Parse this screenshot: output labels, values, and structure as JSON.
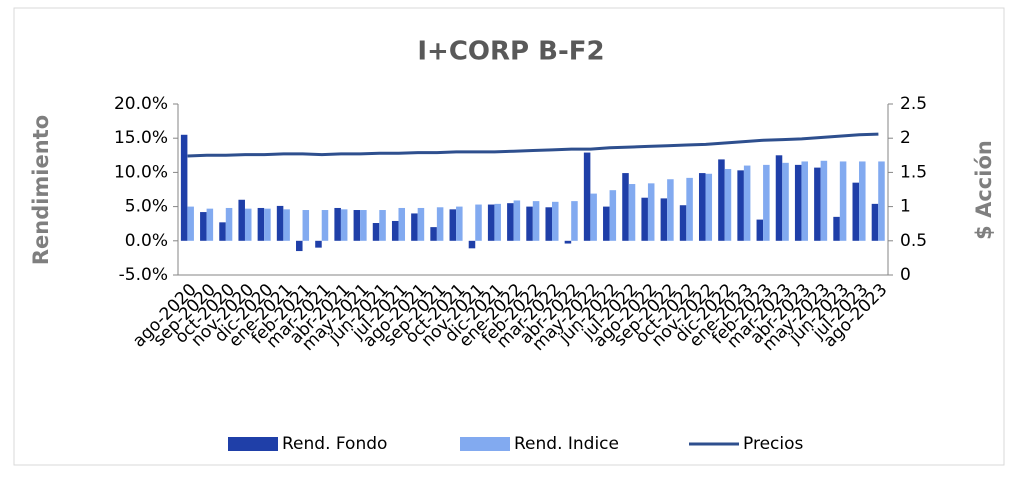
{
  "chart_data": {
    "type": "bar-line",
    "title": "I+CORP B-F2",
    "y_label": "Rendimiento",
    "y2_label": "$ Acción",
    "categories": [
      "ago-2020",
      "sep-2020",
      "oct-2020",
      "nov-2020",
      "dic-2020",
      "ene-2021",
      "feb-2021",
      "mar-2021",
      "abr-2021",
      "may-2021",
      "jun-2021",
      "jul-2021",
      "ago-2021",
      "sep-2021",
      "oct-2021",
      "nov-2021",
      "dic-2021",
      "ene-2022",
      "feb-2022",
      "mar-2022",
      "abr-2022",
      "may-2022",
      "jun-2022",
      "jul-2022",
      "ago-2022",
      "sep-2022",
      "oct-2022",
      "nov-2022",
      "dic-2022",
      "ene-2023",
      "feb-2023",
      "mar-2023",
      "abr-2023",
      "may-2023",
      "jun-2023",
      "jul-2023",
      "ago-2023"
    ],
    "series": [
      {
        "name": "Rend. Fondo",
        "type": "bar",
        "color": "#1f3fa8",
        "values": [
          15.5,
          4.2,
          2.7,
          6.0,
          4.8,
          5.1,
          -1.5,
          -1.0,
          4.8,
          4.5,
          2.6,
          2.9,
          4.0,
          2.0,
          4.6,
          -1.1,
          5.3,
          5.5,
          5.0,
          4.9,
          -0.4,
          12.9,
          5.0,
          9.9,
          6.3,
          6.2,
          5.2,
          9.9,
          11.9,
          10.3,
          3.1,
          12.5,
          11.1,
          10.7,
          3.5,
          8.5,
          5.4
        ]
      },
      {
        "name": "Rend. Indice",
        "type": "bar",
        "color": "#82aaf0",
        "values": [
          5.0,
          4.7,
          4.8,
          4.7,
          4.7,
          4.6,
          4.5,
          4.5,
          4.6,
          4.5,
          4.5,
          4.8,
          4.8,
          4.9,
          5.0,
          5.3,
          5.4,
          5.9,
          5.8,
          5.7,
          5.8,
          6.9,
          7.4,
          8.3,
          8.4,
          9.0,
          9.2,
          9.8,
          10.5,
          11.0,
          11.1,
          11.4,
          11.6,
          11.7,
          11.6,
          11.6,
          11.6
        ]
      },
      {
        "name": "Precios",
        "type": "line",
        "axis": "y2",
        "color": "#2e4f8e",
        "values": [
          1.74,
          1.75,
          1.75,
          1.76,
          1.76,
          1.77,
          1.77,
          1.76,
          1.77,
          1.77,
          1.78,
          1.78,
          1.79,
          1.79,
          1.8,
          1.8,
          1.8,
          1.81,
          1.82,
          1.83,
          1.84,
          1.84,
          1.86,
          1.87,
          1.88,
          1.89,
          1.9,
          1.91,
          1.93,
          1.95,
          1.97,
          1.98,
          1.99,
          2.01,
          2.03,
          2.05,
          2.06
        ]
      }
    ],
    "ylim": [
      -5,
      20
    ],
    "yticks": [
      {
        "value": -5,
        "label": "-5.0%"
      },
      {
        "value": 0,
        "label": "0.0%"
      },
      {
        "value": 5,
        "label": "5.0%"
      },
      {
        "value": 10,
        "label": "10.0%"
      },
      {
        "value": 15,
        "label": "15.0%"
      },
      {
        "value": 20,
        "label": "20.0%"
      }
    ],
    "y2lim": [
      0,
      2.5
    ],
    "y2ticks": [
      0,
      0.5,
      1,
      1.5,
      2,
      2.5
    ],
    "legend": "bottom"
  }
}
